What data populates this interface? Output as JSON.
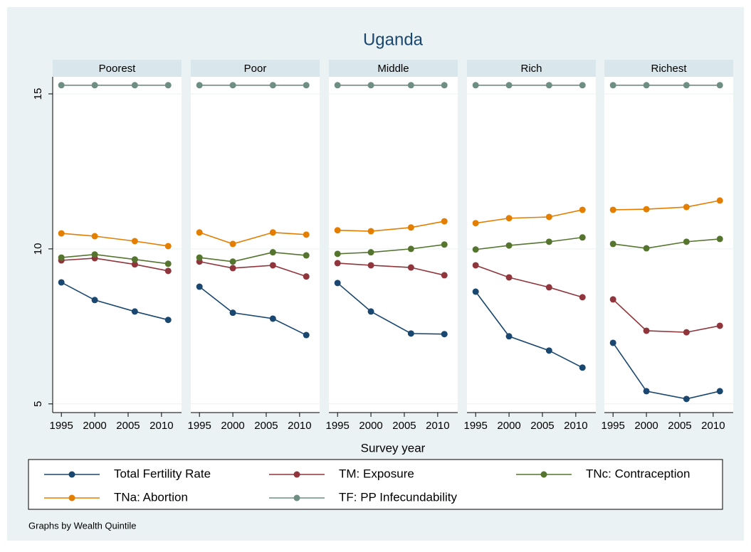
{
  "title": "Uganda",
  "xlabel": "Survey year",
  "note": "Graphs by Wealth Quintile",
  "chart_data": [
    {
      "type": "line",
      "title": "Poorest",
      "x": [
        1995,
        2000,
        2006,
        2011
      ],
      "xlim": [
        1993.7,
        2013
      ],
      "xticks": [
        1995,
        2000,
        2005,
        2010
      ],
      "ylim": [
        4.72,
        15.55
      ],
      "yticks": [
        5,
        10,
        15
      ],
      "grid": true,
      "series": [
        {
          "name": "Total Fertility Rate",
          "color": "#1a476f",
          "values": [
            8.92,
            8.35,
            7.98,
            7.71
          ]
        },
        {
          "name": "TM: Exposure",
          "color": "#90353b",
          "values": [
            9.63,
            9.7,
            9.5,
            9.29
          ]
        },
        {
          "name": "TNc: Contraception",
          "color": "#55752f",
          "values": [
            9.72,
            9.82,
            9.66,
            9.52
          ]
        },
        {
          "name": "TNa: Abortion",
          "color": "#e37e00",
          "values": [
            10.5,
            10.41,
            10.25,
            10.09
          ]
        },
        {
          "name": "TF: PP Infecundability",
          "color": "#6e8e84",
          "values": [
            15.28,
            15.28,
            15.28,
            15.28
          ]
        }
      ]
    },
    {
      "type": "line",
      "title": "Poor",
      "x": [
        1995,
        2000,
        2006,
        2011
      ],
      "xlim": [
        1993.7,
        2013
      ],
      "xticks": [
        1995,
        2000,
        2005,
        2010
      ],
      "ylim": [
        4.72,
        15.55
      ],
      "yticks": [
        5,
        10,
        15
      ],
      "grid": true,
      "series": [
        {
          "name": "Total Fertility Rate",
          "color": "#1a476f",
          "values": [
            8.78,
            7.94,
            7.75,
            7.22
          ]
        },
        {
          "name": "TM: Exposure",
          "color": "#90353b",
          "values": [
            9.59,
            9.38,
            9.47,
            9.11
          ]
        },
        {
          "name": "TNc: Contraception",
          "color": "#55752f",
          "values": [
            9.72,
            9.59,
            9.89,
            9.79
          ]
        },
        {
          "name": "TNa: Abortion",
          "color": "#e37e00",
          "values": [
            10.53,
            10.16,
            10.53,
            10.46
          ]
        },
        {
          "name": "TF: PP Infecundability",
          "color": "#6e8e84",
          "values": [
            15.28,
            15.28,
            15.28,
            15.28
          ]
        }
      ]
    },
    {
      "type": "line",
      "title": "Middle",
      "x": [
        1995,
        2000,
        2006,
        2011
      ],
      "xlim": [
        1993.7,
        2013
      ],
      "xticks": [
        1995,
        2000,
        2005,
        2010
      ],
      "ylim": [
        4.72,
        15.55
      ],
      "yticks": [
        5,
        10,
        15
      ],
      "grid": true,
      "series": [
        {
          "name": "Total Fertility Rate",
          "color": "#1a476f",
          "values": [
            8.9,
            7.98,
            7.27,
            7.25
          ]
        },
        {
          "name": "TM: Exposure",
          "color": "#90353b",
          "values": [
            9.54,
            9.47,
            9.4,
            9.15
          ]
        },
        {
          "name": "TNc: Contraception",
          "color": "#55752f",
          "values": [
            9.84,
            9.89,
            10.0,
            10.14
          ]
        },
        {
          "name": "TNa: Abortion",
          "color": "#e37e00",
          "values": [
            10.6,
            10.57,
            10.69,
            10.89
          ]
        },
        {
          "name": "TF: PP Infecundability",
          "color": "#6e8e84",
          "values": [
            15.28,
            15.28,
            15.28,
            15.28
          ]
        }
      ]
    },
    {
      "type": "line",
      "title": "Rich",
      "x": [
        1995,
        2000,
        2006,
        2011
      ],
      "xlim": [
        1993.7,
        2013
      ],
      "xticks": [
        1995,
        2000,
        2005,
        2010
      ],
      "ylim": [
        4.72,
        15.55
      ],
      "yticks": [
        5,
        10,
        15
      ],
      "grid": true,
      "series": [
        {
          "name": "Total Fertility Rate",
          "color": "#1a476f",
          "values": [
            8.62,
            7.18,
            6.72,
            6.17
          ]
        },
        {
          "name": "TM: Exposure",
          "color": "#90353b",
          "values": [
            9.47,
            9.08,
            8.76,
            8.44
          ]
        },
        {
          "name": "TNc: Contraception",
          "color": "#55752f",
          "values": [
            9.98,
            10.11,
            10.23,
            10.37
          ]
        },
        {
          "name": "TNa: Abortion",
          "color": "#e37e00",
          "values": [
            10.83,
            10.99,
            11.03,
            11.26
          ]
        },
        {
          "name": "TF: PP Infecundability",
          "color": "#6e8e84",
          "values": [
            15.28,
            15.28,
            15.28,
            15.28
          ]
        }
      ]
    },
    {
      "type": "line",
      "title": "Richest",
      "x": [
        1995,
        2000,
        2006,
        2011
      ],
      "xlim": [
        1993.7,
        2013
      ],
      "xticks": [
        1995,
        2000,
        2005,
        2010
      ],
      "ylim": [
        4.72,
        15.55
      ],
      "yticks": [
        5,
        10,
        15
      ],
      "grid": true,
      "series": [
        {
          "name": "Total Fertility Rate",
          "color": "#1a476f",
          "values": [
            6.97,
            5.41,
            5.16,
            5.41
          ]
        },
        {
          "name": "TM: Exposure",
          "color": "#90353b",
          "values": [
            8.37,
            7.36,
            7.31,
            7.52
          ]
        },
        {
          "name": "TNc: Contraception",
          "color": "#55752f",
          "values": [
            10.16,
            10.02,
            10.23,
            10.32
          ]
        },
        {
          "name": "TNa: Abortion",
          "color": "#e37e00",
          "values": [
            11.26,
            11.28,
            11.35,
            11.56
          ]
        },
        {
          "name": "TF: PP Infecundability",
          "color": "#6e8e84",
          "values": [
            15.28,
            15.28,
            15.28,
            15.28
          ]
        }
      ]
    }
  ]
}
